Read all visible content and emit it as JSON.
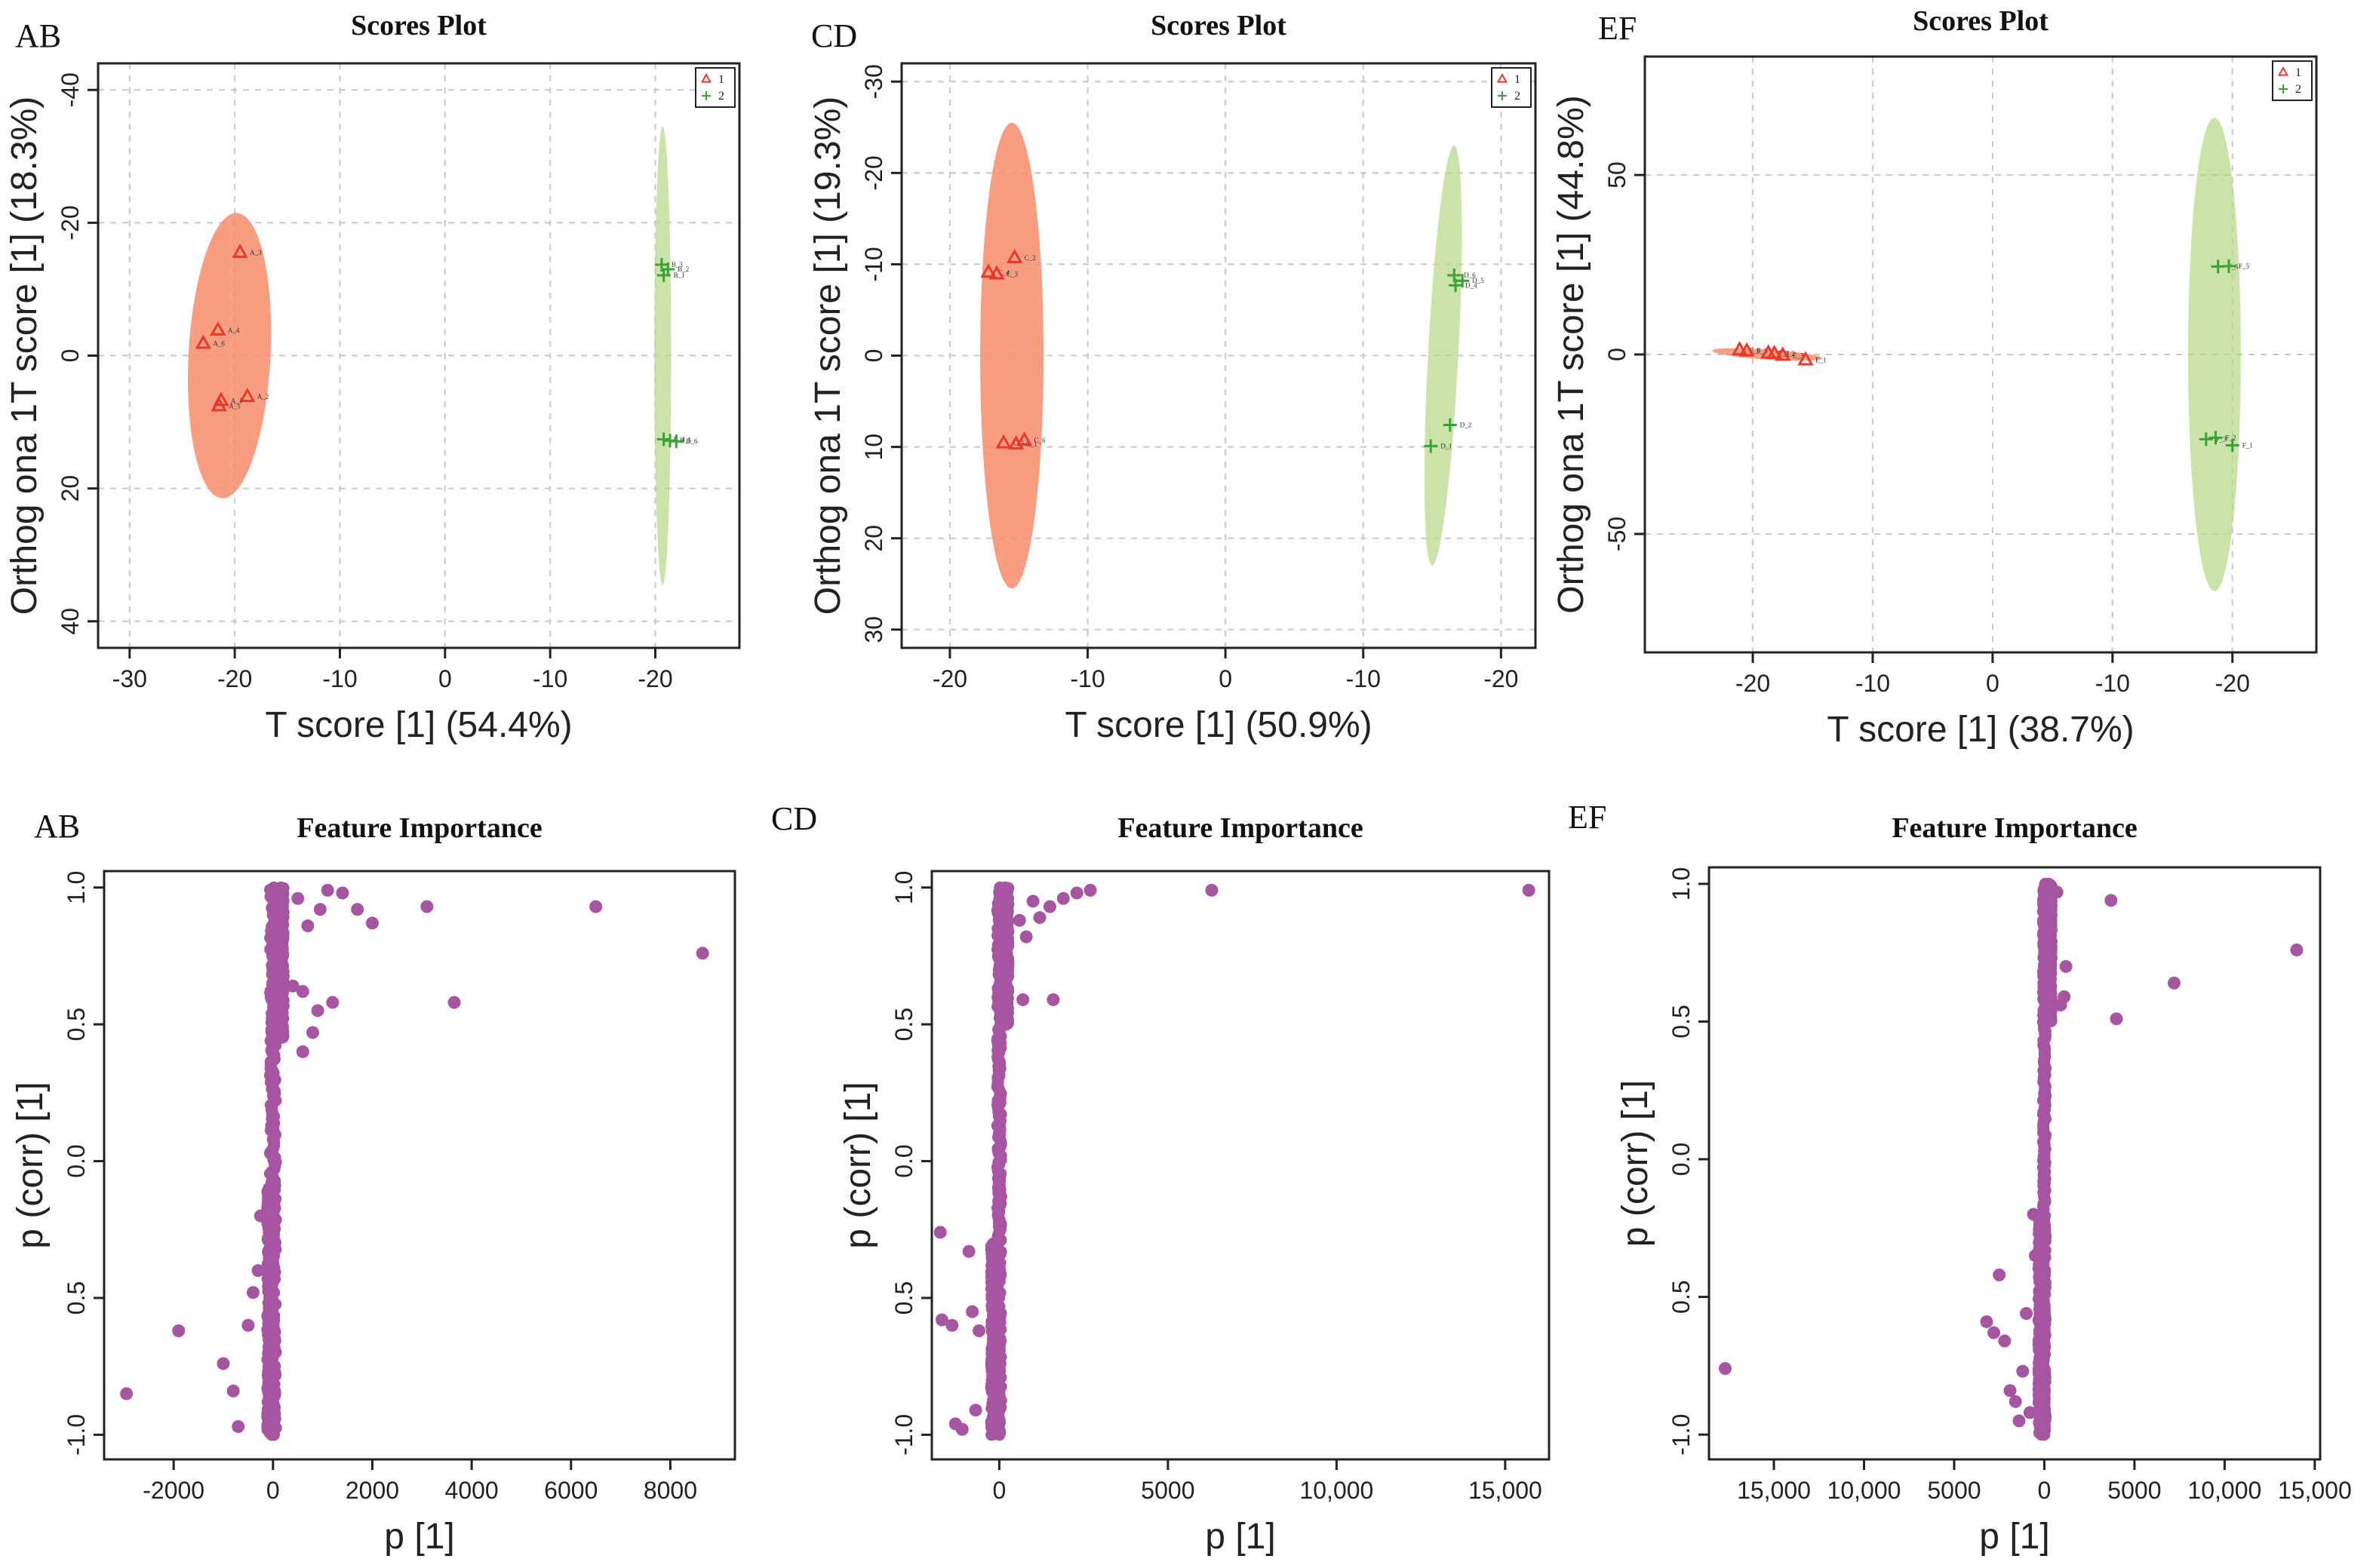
{
  "chart_data": [
    {
      "type": "scatter",
      "id": "scores_ab",
      "panel_label": "AB",
      "title": "Scores Plot",
      "xlabel": "T score [1] (54.4%)",
      "ylabel": "Orthog ona 1T score [1] (18.3%)",
      "x_ticks": [
        "-30",
        "-20",
        "-10",
        "0",
        "-10",
        "-20"
      ],
      "x_tick_values": [
        -30,
        -20,
        -10,
        0,
        10,
        20
      ],
      "y_ticks": [
        "-40",
        "-20",
        "0",
        "20",
        "40"
      ],
      "y_tick_values": [
        40,
        20,
        0,
        -20,
        -40
      ],
      "xlim": [
        -33,
        28
      ],
      "ylim": [
        -44,
        44
      ],
      "legend": [
        "1",
        "2"
      ],
      "ellipses": [
        {
          "series": "1",
          "cx": -20.5,
          "cy": 0,
          "rx": 3.9,
          "ry": 21.5
        },
        {
          "series": "2",
          "cx": 20.7,
          "cy": 0,
          "rx": 0.8,
          "ry": 34.5
        }
      ],
      "series": [
        {
          "name": "1",
          "marker": "triangle",
          "color": "#e8392b",
          "points": [
            {
              "x": -19.5,
              "y": 15.5,
              "label": "A_3"
            },
            {
              "x": -21.6,
              "y": 3.8,
              "label": "A_4"
            },
            {
              "x": -23.0,
              "y": 1.8,
              "label": "A_6"
            },
            {
              "x": -18.8,
              "y": -6.2,
              "label": "A_2"
            },
            {
              "x": -21.3,
              "y": -6.8,
              "label": "A_1"
            },
            {
              "x": -21.5,
              "y": -7.6,
              "label": "A_5"
            }
          ]
        },
        {
          "name": "2",
          "marker": "plus",
          "color": "#3aa335",
          "points": [
            {
              "x": 20.6,
              "y": 13.7,
              "label": "B_3"
            },
            {
              "x": 21.2,
              "y": 13.0,
              "label": "B_2"
            },
            {
              "x": 20.8,
              "y": 12.1,
              "label": "B_1"
            },
            {
              "x": 20.8,
              "y": -12.6,
              "label": "B_4"
            },
            {
              "x": 21.4,
              "y": -12.8,
              "label": "B_5"
            },
            {
              "x": 22.0,
              "y": -12.9,
              "label": "B_6"
            }
          ]
        }
      ]
    },
    {
      "type": "scatter",
      "id": "scores_cd",
      "panel_label": "CD",
      "title": "Scores Plot",
      "xlabel": "T score [1] (50.9%)",
      "ylabel": "Orthog ona 1T score [1] (19.3%)",
      "x_ticks": [
        "-20",
        "-10",
        "0",
        "-10",
        "-20"
      ],
      "x_tick_values": [
        -20,
        -10,
        0,
        10,
        20
      ],
      "y_ticks": [
        "-30",
        "-20",
        "-10",
        "0",
        "10",
        "20",
        "30"
      ],
      "y_tick_values": [
        30,
        20,
        10,
        0,
        -10,
        -20,
        -30
      ],
      "xlim": [
        -23.5,
        22.5
      ],
      "ylim": [
        -32,
        32
      ],
      "legend": [
        "1",
        "2"
      ],
      "ellipses": [
        {
          "series": "1",
          "cx": -15.5,
          "cy": 0,
          "rx": 2.3,
          "ry": 25.5
        },
        {
          "series": "2",
          "cx": 15.8,
          "cy": 0,
          "rx": 1.1,
          "ry": 23.0
        }
      ],
      "series": [
        {
          "name": "1",
          "marker": "triangle",
          "color": "#e8392b",
          "points": [
            {
              "x": -15.3,
              "y": 10.7,
              "label": "C_2"
            },
            {
              "x": -17.2,
              "y": 9.1,
              "label": "C_4"
            },
            {
              "x": -16.6,
              "y": 8.9,
              "label": "C_3"
            },
            {
              "x": -16.1,
              "y": -9.6,
              "label": "C_5"
            },
            {
              "x": -15.2,
              "y": -9.7,
              "label": "C_1"
            },
            {
              "x": -14.6,
              "y": -9.3,
              "label": "C_6"
            }
          ]
        },
        {
          "name": "2",
          "marker": "plus",
          "color": "#3aa335",
          "points": [
            {
              "x": 16.6,
              "y": 8.8,
              "label": "D_6"
            },
            {
              "x": 17.2,
              "y": 8.2,
              "label": "D_5"
            },
            {
              "x": 16.7,
              "y": 7.7,
              "label": "D_4"
            },
            {
              "x": 16.3,
              "y": -7.6,
              "label": "D_2"
            },
            {
              "x": 14.9,
              "y": -9.9,
              "label": "D_1"
            }
          ]
        }
      ]
    },
    {
      "type": "scatter",
      "id": "scores_ef",
      "panel_label": "EF",
      "title": "Scores Plot",
      "xlabel": "T score [1] (38.7%)",
      "ylabel": "Orthog ona 1T score [1] (44.8%)",
      "x_ticks": [
        "-20",
        "-10",
        "0",
        "-10",
        "-20"
      ],
      "x_tick_values": [
        -20,
        -10,
        0,
        10,
        20
      ],
      "y_ticks": [
        "50",
        "0",
        "-50"
      ],
      "y_tick_values": [
        50,
        0,
        -50
      ],
      "xlim": [
        -29,
        27
      ],
      "ylim": [
        -83,
        83
      ],
      "legend": [
        "1",
        "2"
      ],
      "ellipses": [
        {
          "series": "1",
          "cx": -18.8,
          "cy": 0,
          "rx": 4.6,
          "ry": 1.4
        },
        {
          "series": "2",
          "cx": 18.5,
          "cy": 0,
          "rx": 2.2,
          "ry": 66
        }
      ],
      "series": [
        {
          "name": "1",
          "marker": "triangle",
          "color": "#e8392b",
          "points": [
            {
              "x": -21.1,
              "y": 1.2,
              "label": "E_6"
            },
            {
              "x": -20.5,
              "y": 0.9,
              "label": "E_5"
            },
            {
              "x": -18.7,
              "y": 0.3,
              "label": "E_4"
            },
            {
              "x": -18.2,
              "y": 0.2,
              "label": "E_2"
            },
            {
              "x": -17.5,
              "y": -0.3,
              "label": "E_3"
            },
            {
              "x": -15.6,
              "y": -1.6,
              "label": "E_1"
            }
          ]
        },
        {
          "name": "2",
          "marker": "plus",
          "color": "#3aa335",
          "points": [
            {
              "x": 18.8,
              "y": 24.5,
              "label": "F_6"
            },
            {
              "x": 19.7,
              "y": 24.6,
              "label": "F_5"
            },
            {
              "x": 17.8,
              "y": -23.6,
              "label": "F_3"
            },
            {
              "x": 18.6,
              "y": -23.2,
              "label": "F_2"
            },
            {
              "x": 20.0,
              "y": -25.3,
              "label": "F_1"
            }
          ]
        }
      ]
    },
    {
      "type": "scatter",
      "id": "feature_ab",
      "panel_label": "AB",
      "title": "Feature Importance",
      "xlabel": "p [1]",
      "ylabel": "p (corr) [1]",
      "x_ticks": [
        "-2000",
        "0",
        "2000",
        "4000",
        "6000",
        "8000"
      ],
      "x_tick_values": [
        -2000,
        0,
        2000,
        4000,
        6000,
        8000
      ],
      "y_ticks": [
        "1.0",
        "0.5",
        "0.0",
        "0.5",
        "-1.0"
      ],
      "y_tick_values": [
        1.0,
        0.5,
        0.0,
        -0.5,
        -1.0
      ],
      "xlim": [
        -3400,
        9300
      ],
      "ylim": [
        -1.09,
        1.06
      ],
      "color": "#a656a0",
      "dense_columns": [
        {
          "x": 0,
          "y_from": -1.0,
          "y_to": 1.0,
          "spread": 120
        },
        {
          "x": 160,
          "y_from": 0.45,
          "y_to": 1.0,
          "spread": 110
        },
        {
          "x": -60,
          "y_from": -1.0,
          "y_to": -0.1,
          "spread": 110
        }
      ],
      "outliers": [
        {
          "x": 8650,
          "y": 0.76
        },
        {
          "x": 6500,
          "y": 0.93
        },
        {
          "x": 3100,
          "y": 0.93
        },
        {
          "x": 3650,
          "y": 0.58
        },
        {
          "x": 2000,
          "y": 0.87
        },
        {
          "x": 1700,
          "y": 0.92
        },
        {
          "x": 1400,
          "y": 0.98
        },
        {
          "x": 1100,
          "y": 0.99
        },
        {
          "x": 950,
          "y": 0.92
        },
        {
          "x": 1200,
          "y": 0.58
        },
        {
          "x": 900,
          "y": 0.55
        },
        {
          "x": 800,
          "y": 0.47
        },
        {
          "x": 600,
          "y": 0.4
        },
        {
          "x": 700,
          "y": 0.86
        },
        {
          "x": 500,
          "y": 0.96
        },
        {
          "x": 400,
          "y": 0.64
        },
        {
          "x": 600,
          "y": 0.62
        },
        {
          "x": -1900,
          "y": -0.62
        },
        {
          "x": -2950,
          "y": -0.85
        },
        {
          "x": -1000,
          "y": -0.74
        },
        {
          "x": -800,
          "y": -0.84
        },
        {
          "x": -700,
          "y": -0.97
        },
        {
          "x": -500,
          "y": -0.6
        },
        {
          "x": -400,
          "y": -0.48
        },
        {
          "x": -300,
          "y": -0.4
        },
        {
          "x": -250,
          "y": -0.2
        }
      ]
    },
    {
      "type": "scatter",
      "id": "feature_cd",
      "panel_label": "CD",
      "title": "Feature Importance",
      "xlabel": "p [1]",
      "ylabel": "p (corr) [1]",
      "x_ticks": [
        "0",
        "5000",
        "10,000",
        "15,000"
      ],
      "x_tick_values": [
        0,
        5000,
        10000,
        15000
      ],
      "y_ticks": [
        "1.0",
        "0.5",
        "0.0",
        "0.5",
        "-1.0"
      ],
      "y_tick_values": [
        1.0,
        0.5,
        0.0,
        -0.5,
        -1.0
      ],
      "xlim": [
        -2000,
        16300
      ],
      "ylim": [
        -1.09,
        1.06
      ],
      "color": "#a656a0",
      "dense_columns": [
        {
          "x": 0,
          "y_from": -1.0,
          "y_to": 1.0,
          "spread": 120
        },
        {
          "x": -150,
          "y_from": -1.0,
          "y_to": -0.3,
          "spread": 180
        },
        {
          "x": 200,
          "y_from": 0.5,
          "y_to": 1.0,
          "spread": 140
        }
      ],
      "outliers": [
        {
          "x": 15700,
          "y": 0.99
        },
        {
          "x": 6300,
          "y": 0.99
        },
        {
          "x": 2700,
          "y": 0.99
        },
        {
          "x": 2300,
          "y": 0.98
        },
        {
          "x": 1900,
          "y": 0.96
        },
        {
          "x": 1500,
          "y": 0.93
        },
        {
          "x": 1200,
          "y": 0.89
        },
        {
          "x": 1000,
          "y": 0.95
        },
        {
          "x": 800,
          "y": 0.82
        },
        {
          "x": 1600,
          "y": 0.59
        },
        {
          "x": 700,
          "y": 0.59
        },
        {
          "x": 600,
          "y": 0.88
        },
        {
          "x": -1750,
          "y": -0.26
        },
        {
          "x": -1700,
          "y": -0.58
        },
        {
          "x": -1400,
          "y": -0.6
        },
        {
          "x": -1300,
          "y": -0.96
        },
        {
          "x": -1100,
          "y": -0.98
        },
        {
          "x": -900,
          "y": -0.33
        },
        {
          "x": -800,
          "y": -0.55
        },
        {
          "x": -700,
          "y": -0.91
        },
        {
          "x": -600,
          "y": -0.62
        }
      ]
    },
    {
      "type": "scatter",
      "id": "feature_ef",
      "panel_label": "EF",
      "title": "Feature Importance",
      "xlabel": "p [1]",
      "ylabel": "p (corr) [1]",
      "x_ticks": [
        "15,000",
        "10,000",
        "5000",
        "0",
        "5000",
        "10,000",
        "15,000"
      ],
      "x_tick_values": [
        -15000,
        -10000,
        -5000,
        0,
        5000,
        10000,
        15000
      ],
      "y_ticks": [
        "1.0",
        "0.5",
        "0.0",
        "0.5",
        "-1.0"
      ],
      "y_tick_values": [
        1.0,
        0.5,
        0.0,
        -0.5,
        -1.0
      ],
      "xlim": [
        -18600,
        15300
      ],
      "ylim": [
        -1.09,
        1.06
      ],
      "color": "#a656a0",
      "dense_columns": [
        {
          "x": 0,
          "y_from": -1.0,
          "y_to": 1.0,
          "spread": 140
        },
        {
          "x": -200,
          "y_from": -1.0,
          "y_to": -0.2,
          "spread": 250
        },
        {
          "x": 300,
          "y_from": 0.5,
          "y_to": 1.0,
          "spread": 200
        }
      ],
      "outliers": [
        {
          "x": 14000,
          "y": 0.76
        },
        {
          "x": 7200,
          "y": 0.64
        },
        {
          "x": 4000,
          "y": 0.51
        },
        {
          "x": 3700,
          "y": 0.94
        },
        {
          "x": 1200,
          "y": 0.7
        },
        {
          "x": 1100,
          "y": 0.59
        },
        {
          "x": 900,
          "y": 0.56
        },
        {
          "x": 700,
          "y": 0.97
        },
        {
          "x": -17700,
          "y": -0.76
        },
        {
          "x": -3200,
          "y": -0.59
        },
        {
          "x": -2800,
          "y": -0.63
        },
        {
          "x": -2500,
          "y": -0.42
        },
        {
          "x": -2200,
          "y": -0.66
        },
        {
          "x": -1900,
          "y": -0.84
        },
        {
          "x": -1600,
          "y": -0.88
        },
        {
          "x": -1400,
          "y": -0.95
        },
        {
          "x": -1200,
          "y": -0.77
        },
        {
          "x": -1000,
          "y": -0.56
        },
        {
          "x": -800,
          "y": -0.92
        },
        {
          "x": -600,
          "y": -0.2
        },
        {
          "x": -500,
          "y": -0.35
        }
      ]
    }
  ]
}
